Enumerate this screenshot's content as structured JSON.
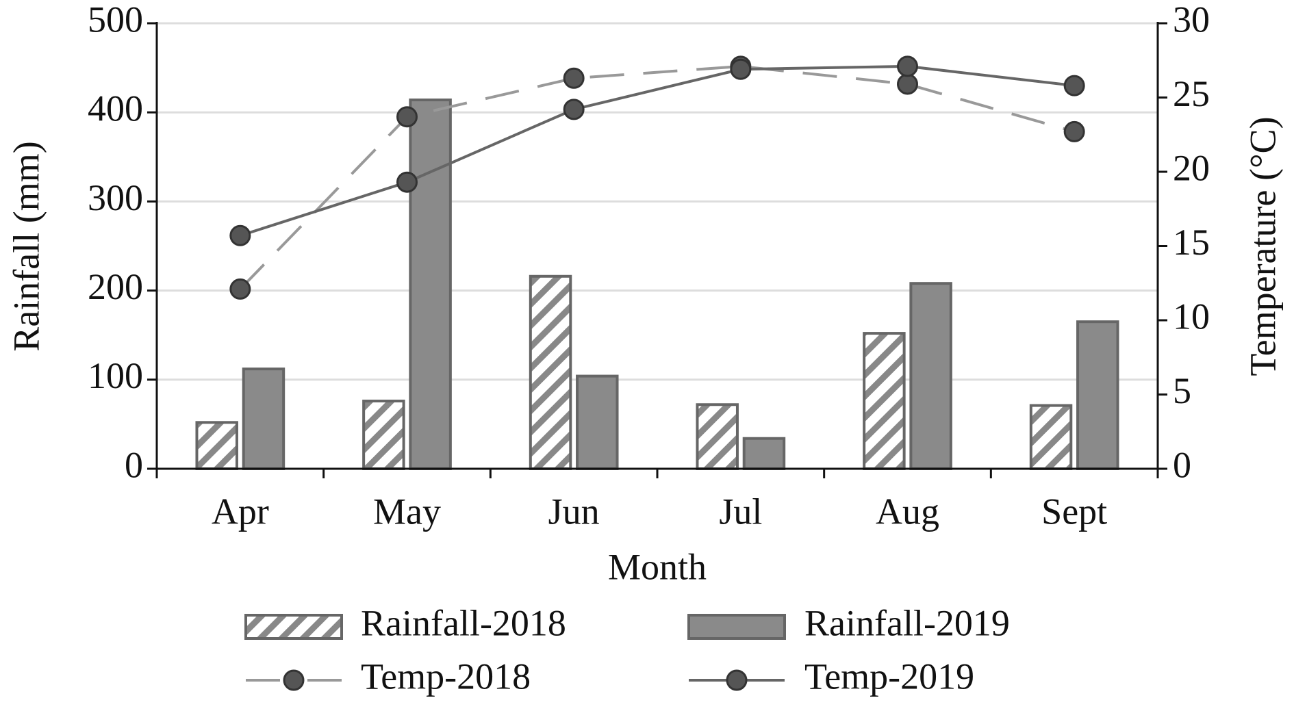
{
  "chart_data": {
    "type": "bar",
    "x_label": "Month",
    "y_label": "Rainfall (mm)",
    "y2_label": "Temperature (°C)",
    "categories": [
      "Apr",
      "May",
      "Jun",
      "Jul",
      "Aug",
      "Sept"
    ],
    "ylim": [
      0,
      500
    ],
    "yticks": [
      0,
      100,
      200,
      300,
      400,
      500
    ],
    "y2lim": [
      0,
      30
    ],
    "y2ticks": [
      0,
      5,
      10,
      15,
      20,
      25,
      30
    ],
    "grid": true,
    "legend": "bottom",
    "series": [
      {
        "name": "Rainfall-2018",
        "type": "bar",
        "pattern": "hatch",
        "color": "#888888",
        "values": [
          52,
          76,
          216,
          72,
          152,
          71
        ]
      },
      {
        "name": "Rainfall-2019",
        "type": "bar",
        "color": "#8a8a8a",
        "values": [
          112,
          414,
          104,
          34,
          208,
          165
        ]
      },
      {
        "name": "Temp-2018",
        "type": "line",
        "axis": "y2",
        "dash": true,
        "color": "#999999",
        "values": [
          12.1,
          23.7,
          26.3,
          27.1,
          25.9,
          22.7
        ]
      },
      {
        "name": "Temp-2019",
        "type": "line",
        "axis": "y2",
        "color": "#666666",
        "values": [
          15.7,
          19.3,
          24.2,
          26.9,
          27.1,
          25.8
        ]
      }
    ]
  }
}
